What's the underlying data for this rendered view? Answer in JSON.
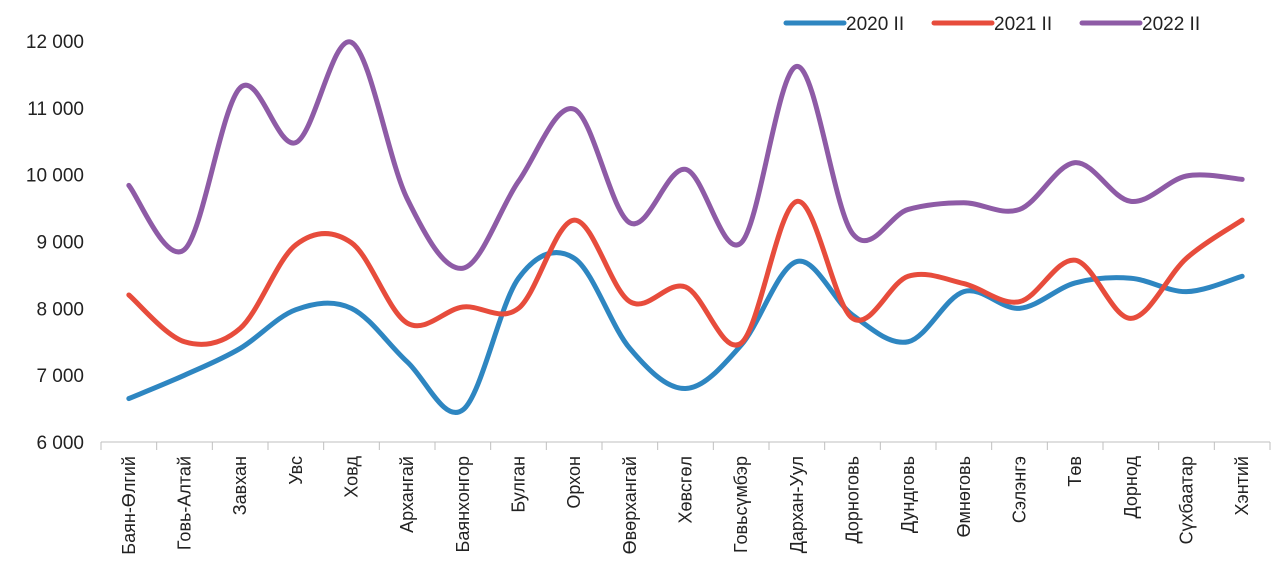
{
  "chart_data": {
    "type": "line",
    "title": "",
    "xlabel": "",
    "ylabel": "",
    "ylim": [
      6000,
      12000
    ],
    "yticks": [
      6000,
      7000,
      8000,
      9000,
      10000,
      11000,
      12000
    ],
    "ytick_labels": [
      "6 000",
      "7 000",
      "8 000",
      "9 000",
      "10 000",
      "11 000",
      "12 000"
    ],
    "grid": false,
    "legend_position": "top-right",
    "categories": [
      "Баян-Өлгий",
      "Говь-Алтай",
      "Завхан",
      "Увс",
      "Ховд",
      "Архангай",
      "Баянхонгор",
      "Булган",
      "Орхон",
      "Өвөрхангай",
      "Хөвсгөл",
      "Говьсүмбэр",
      "Дархан-Уул",
      "Дорноговь",
      "Дундговь",
      "Өмнөговь",
      "Сэлэнгэ",
      "Төв",
      "Дорнод",
      "Сүхбаатар",
      "Хэнтий"
    ],
    "series": [
      {
        "name": "2020 II",
        "color": "#2E86C1",
        "values": [
          6650,
          7000,
          7400,
          7980,
          8000,
          7200,
          6480,
          8450,
          8750,
          7400,
          6800,
          7450,
          8700,
          7900,
          7500,
          8250,
          8000,
          8380,
          8450,
          8250,
          8480
        ]
      },
      {
        "name": "2021 II",
        "color": "#E74C3C",
        "values": [
          8200,
          7500,
          7700,
          8950,
          8980,
          7780,
          8020,
          8000,
          9320,
          8100,
          8320,
          7480,
          9600,
          7850,
          8480,
          8370,
          8100,
          8720,
          7850,
          8750,
          9320
        ]
      },
      {
        "name": "2022 II",
        "color": "#8E5BA6",
        "values": [
          9840,
          8880,
          11300,
          10480,
          11980,
          9640,
          8600,
          9900,
          10980,
          9280,
          10080,
          8980,
          11620,
          9120,
          9480,
          9580,
          9480,
          10180,
          9600,
          9980,
          9930
        ]
      }
    ]
  }
}
